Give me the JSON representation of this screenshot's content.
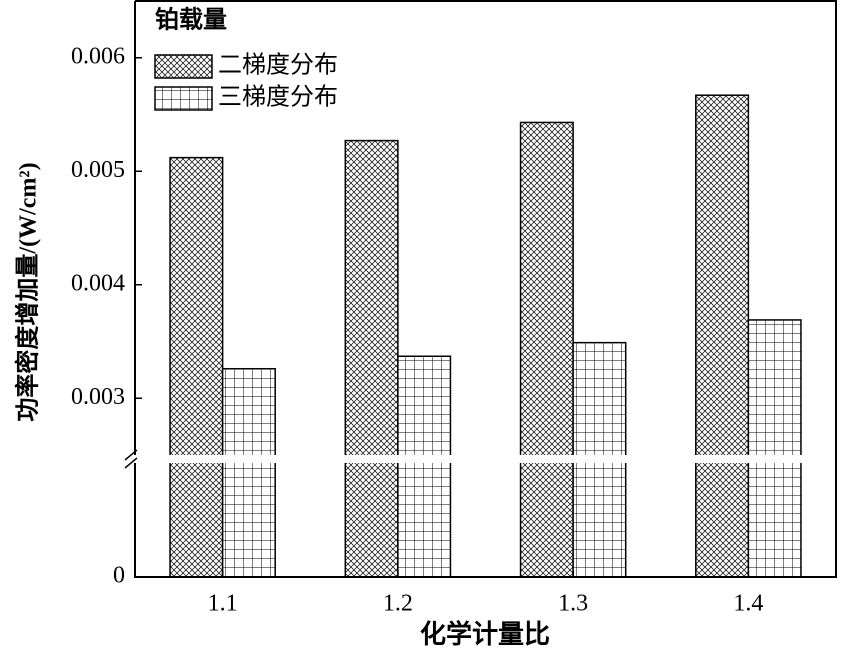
{
  "chart_data": {
    "type": "bar",
    "x_label": "化学计量比",
    "y_label": "功率密度增加量/(W/cm²)",
    "legend_title": "铂载量",
    "categories": [
      "1.1",
      "1.2",
      "1.3",
      "1.4"
    ],
    "series": [
      {
        "name": "二梯度分布",
        "color": "#000000",
        "pattern": "diagonal-cross",
        "values": [
          0.00512,
          0.00527,
          0.00543,
          0.00567
        ]
      },
      {
        "name": "三梯度分布",
        "color": "#000000",
        "pattern": "grid",
        "values": [
          0.00326,
          0.00337,
          0.00349,
          0.00369
        ]
      }
    ],
    "ylim": [
      0,
      0.0065
    ],
    "ybreak": [
      0.001,
      0.0025
    ],
    "yticks": [
      0,
      0.003,
      0.004,
      0.005,
      0.006
    ],
    "grid": false,
    "legend": "upper left"
  }
}
